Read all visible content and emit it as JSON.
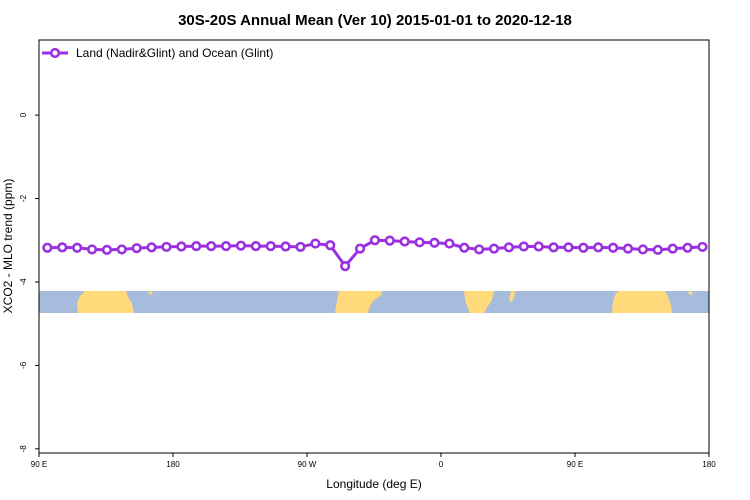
{
  "chart_data": {
    "type": "line",
    "title": "30S-20S Annual Mean (Ver 10)   2015-01-01 to 2020-12-18",
    "xlabel": "Longitude (deg E)",
    "ylabel": "XCO2 - MLO trend (ppm)",
    "xlim": [
      90,
      450
    ],
    "ylim": [
      -8.1,
      1.8
    ],
    "x_ticks": [
      {
        "value": 90,
        "label": "90 E"
      },
      {
        "value": 162,
        "label": "180"
      },
      {
        "value": 234,
        "label": "90 W"
      },
      {
        "value": 306,
        "label": "0"
      },
      {
        "value": 378,
        "label": "90 E"
      },
      {
        "value": 450,
        "label": "180"
      }
    ],
    "y_ticks": [
      {
        "value": 0,
        "label": "0"
      },
      {
        "value": -2,
        "label": "-2"
      },
      {
        "value": -4,
        "label": "-4"
      },
      {
        "value": -6,
        "label": "-6"
      },
      {
        "value": -8,
        "label": "-8"
      }
    ],
    "grid": false,
    "legend_position": "top-left",
    "series": [
      {
        "name": "Land (Nadir&Glint) and Ocean (Glint)",
        "color": "#9b30e0",
        "marker": "open-circle",
        "x": [
          94.5,
          102.5,
          110.5,
          118.5,
          126.5,
          134.5,
          142.5,
          150.5,
          158.5,
          166.5,
          174.5,
          182.5,
          190.5,
          198.5,
          206.5,
          214.5,
          222.5,
          230.5,
          238.5,
          246.5,
          254.5,
          262.5,
          270.5,
          278.5,
          286.5,
          294.5,
          302.5,
          310.5,
          318.5,
          326.5,
          334.5,
          342.5,
          350.5,
          358.5,
          366.5,
          374.5,
          382.5,
          390.5,
          398.5,
          406.5,
          414.5,
          422.5,
          430.5,
          438.5,
          446.5
        ],
        "values": [
          -3.18,
          -3.17,
          -3.18,
          -3.22,
          -3.23,
          -3.22,
          -3.19,
          -3.17,
          -3.16,
          -3.15,
          -3.14,
          -3.14,
          -3.14,
          -3.13,
          -3.14,
          -3.14,
          -3.15,
          -3.16,
          -3.08,
          -3.12,
          -3.62,
          -3.2,
          -3.0,
          -3.01,
          -3.03,
          -3.05,
          -3.06,
          -3.08,
          -3.18,
          -3.22,
          -3.2,
          -3.17,
          -3.15,
          -3.15,
          -3.17,
          -3.17,
          -3.18,
          -3.17,
          -3.18,
          -3.2,
          -3.22,
          -3.23,
          -3.2,
          -3.18,
          -3.16
        ]
      }
    ],
    "map_strip": {
      "ocean_color": "#a6bcdc",
      "land_color": "#ffd97a",
      "lat_range": [
        "30S",
        "20S"
      ]
    }
  }
}
